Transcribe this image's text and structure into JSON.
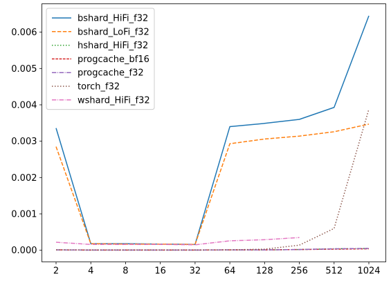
{
  "chart_data": {
    "type": "line",
    "title": "",
    "xlabel": "",
    "ylabel": "",
    "categories": [
      "2",
      "4",
      "8",
      "16",
      "32",
      "64",
      "128",
      "256",
      "512",
      "1024"
    ],
    "ylim": [
      -0.00032,
      0.00678
    ],
    "yticks": [
      "0.000",
      "0.001",
      "0.002",
      "0.003",
      "0.004",
      "0.005",
      "0.006"
    ],
    "ytick_values": [
      0,
      0.001,
      0.002,
      0.003,
      0.004,
      0.005,
      0.006
    ],
    "grid": false,
    "legend_position": "top-left",
    "series": [
      {
        "name": "bshard_HiFi_f32",
        "color": "#1f77b4",
        "dash": "solid",
        "values": [
          0.00336,
          0.00018,
          0.00018,
          0.00017,
          0.00016,
          0.0034,
          0.00349,
          0.0036,
          0.00393,
          0.00645
        ]
      },
      {
        "name": "bshard_LoFi_f32",
        "color": "#ff7f0e",
        "dash": "dashed",
        "values": [
          0.00285,
          0.00018,
          0.00017,
          0.00017,
          0.00016,
          0.00293,
          0.00306,
          0.00314,
          0.00326,
          0.00347
        ]
      },
      {
        "name": "hshard_HiFi_f32",
        "color": "#2ca02c",
        "dash": "dotted",
        "values": [
          1e-05,
          5e-06,
          5e-06,
          5e-06,
          5e-06,
          1e-05,
          1e-05,
          2e-05,
          4e-05,
          5e-05
        ]
      },
      {
        "name": "progcache_bf16",
        "color": "#d62728",
        "dash": "densedash",
        "values": [
          1e-05,
          5e-06,
          5e-06,
          5e-06,
          5e-06,
          1e-05,
          1e-05,
          2e-05,
          3e-05,
          4e-05
        ]
      },
      {
        "name": "progcache_f32",
        "color": "#9467bd",
        "dash": "dashdot",
        "values": [
          1e-05,
          5e-06,
          5e-06,
          5e-06,
          5e-06,
          1e-05,
          1e-05,
          2e-05,
          4e-05,
          5e-05
        ]
      },
      {
        "name": "torch_f32",
        "color": "#8c564b",
        "dash": "dotted",
        "values": [
          1e-05,
          1e-05,
          1e-05,
          1e-05,
          1e-05,
          1e-05,
          3e-05,
          0.00014,
          0.0006,
          0.00388
        ]
      },
      {
        "name": "wshard_HiFi_f32",
        "color": "#e377c2",
        "dash": "dashdot",
        "values": [
          0.00022,
          0.00016,
          0.00016,
          0.00016,
          0.00015,
          0.00026,
          0.00029,
          0.00035,
          null,
          null
        ]
      }
    ]
  }
}
